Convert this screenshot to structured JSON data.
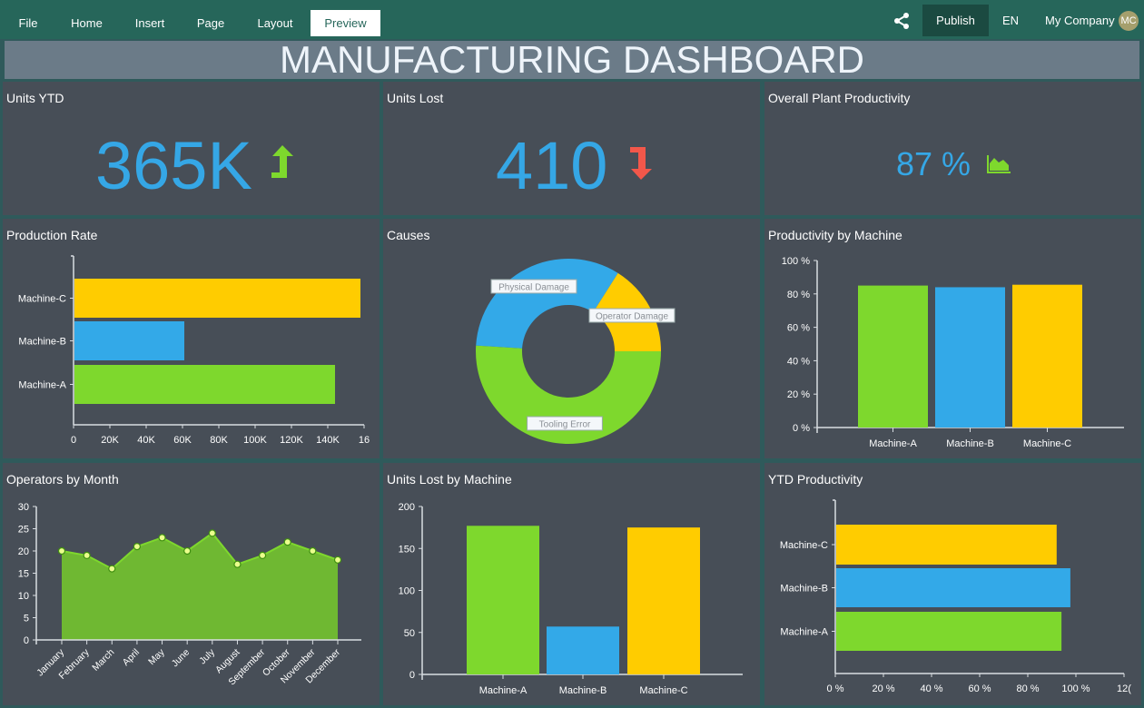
{
  "nav": {
    "tabs": [
      "File",
      "Home",
      "Insert",
      "Page",
      "Layout",
      "Preview"
    ],
    "active_tab": "Preview",
    "share_icon": "share-icon",
    "publish_label": "Publish",
    "language": "EN",
    "company": "My Company",
    "avatar_initials": "MC"
  },
  "title": "MANUFACTURING DASHBOARD",
  "colors": {
    "green": "#7ed82d",
    "blue": "#33a9e8",
    "yellow": "#ffcc00",
    "red": "#f2574a",
    "kpi_blue": "#35a7e6",
    "area_green": "#6fb832"
  },
  "kpis": {
    "units_ytd": {
      "title": "Units YTD",
      "value": "365K",
      "icon": "trend-up-arrow-icon"
    },
    "units_lost": {
      "title": "Units Lost",
      "value": "410",
      "icon": "trend-down-arrow-icon"
    },
    "productivity": {
      "title": "Overall Plant Productivity",
      "value": "87 %",
      "icon": "area-chart-icon"
    }
  },
  "chart_data": [
    {
      "id": "production_rate",
      "title": "Production Rate",
      "type": "bar",
      "orientation": "horizontal",
      "categories": [
        "Machine-A",
        "Machine-B",
        "Machine-C"
      ],
      "values": [
        144000,
        61000,
        158000
      ],
      "xlim": [
        0,
        160000
      ],
      "tick_labels": [
        "0",
        "20K",
        "40K",
        "60K",
        "80K",
        "100K",
        "120K",
        "140K",
        "16"
      ]
    },
    {
      "id": "causes",
      "title": "Causes",
      "type": "pie",
      "donut": true,
      "labels": [
        "Tooling Error",
        "Physical Damage",
        "Operator Damage"
      ],
      "values": [
        51,
        33,
        16
      ]
    },
    {
      "id": "productivity_by_machine",
      "title": "Productivity by Machine",
      "type": "bar",
      "categories": [
        "Machine-A",
        "Machine-B",
        "Machine-C"
      ],
      "values": [
        85,
        84,
        85.5
      ],
      "ylim": [
        0,
        100
      ],
      "tick_labels": [
        "0 %",
        "20 %",
        "40 %",
        "60 %",
        "80 %",
        "100 %"
      ]
    },
    {
      "id": "operators_by_month",
      "title": "Operators by Month",
      "type": "area",
      "categories": [
        "January",
        "February",
        "March",
        "April",
        "May",
        "June",
        "July",
        "August",
        "September",
        "October",
        "November",
        "December"
      ],
      "values": [
        20,
        19,
        16,
        21,
        23,
        20,
        24,
        17,
        19,
        22,
        20,
        18
      ],
      "ylim": [
        0,
        30
      ],
      "tick_labels": [
        "0",
        "5",
        "10",
        "15",
        "20",
        "25",
        "30"
      ]
    },
    {
      "id": "units_lost_by_machine",
      "title": "Units Lost by Machine",
      "type": "bar",
      "categories": [
        "Machine-A",
        "Machine-B",
        "Machine-C"
      ],
      "values": [
        177,
        57,
        175
      ],
      "ylim": [
        0,
        200
      ],
      "tick_labels": [
        "0",
        "50",
        "100",
        "150",
        "200"
      ]
    },
    {
      "id": "ytd_productivity",
      "title": "YTD Productivity",
      "type": "bar",
      "orientation": "horizontal",
      "categories": [
        "Machine-A",
        "Machine-B",
        "Machine-C"
      ],
      "values": [
        94,
        97.7,
        92
      ],
      "xlim": [
        0,
        120
      ],
      "tick_labels": [
        "0 %",
        "20 %",
        "40 %",
        "60 %",
        "80 %",
        "100 %",
        "12("
      ]
    }
  ]
}
